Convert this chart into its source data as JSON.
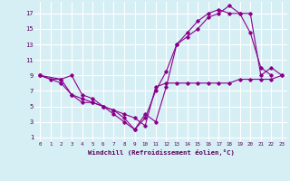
{
  "xlabel": "Windchill (Refroidissement éolien,°C)",
  "background_color": "#d6eff5",
  "grid_color": "#ffffff",
  "line_color": "#8b008b",
  "xlim": [
    -0.5,
    23.5
  ],
  "ylim": [
    0.5,
    18.5
  ],
  "xticks": [
    0,
    1,
    2,
    3,
    4,
    5,
    6,
    7,
    8,
    9,
    10,
    11,
    12,
    13,
    14,
    15,
    16,
    17,
    18,
    19,
    20,
    21,
    22,
    23
  ],
  "yticks": [
    1,
    3,
    5,
    7,
    9,
    11,
    13,
    15,
    17
  ],
  "series": [
    {
      "x": [
        0,
        1,
        2,
        3,
        4,
        5,
        6,
        7,
        8,
        9,
        10,
        11,
        12,
        13,
        14,
        15,
        16,
        17,
        18,
        19,
        20,
        21,
        22
      ],
      "y": [
        9,
        8.5,
        8.5,
        9,
        6.5,
        6,
        5,
        4.5,
        3.5,
        2,
        3.5,
        7,
        9.5,
        13,
        14.5,
        16,
        17,
        17.5,
        17,
        17,
        14.5,
        10,
        9
      ]
    },
    {
      "x": [
        0,
        2,
        3,
        4,
        5,
        6,
        7,
        8,
        9,
        10,
        11,
        12,
        13,
        14,
        15,
        16,
        17,
        18,
        19,
        20,
        21,
        22,
        23
      ],
      "y": [
        9,
        8.5,
        6.5,
        6,
        5.5,
        5,
        4.5,
        4,
        3.5,
        2.5,
        7.5,
        8,
        8,
        8,
        8,
        8,
        8,
        8,
        8.5,
        8.5,
        8.5,
        8.5,
        9
      ]
    },
    {
      "x": [
        0,
        2,
        3,
        4,
        5,
        6,
        7,
        8,
        9,
        10,
        11,
        12,
        13,
        14,
        15,
        16,
        17,
        18,
        19,
        20,
        21,
        22,
        23
      ],
      "y": [
        9,
        8,
        6.5,
        5.5,
        5.5,
        5,
        4,
        3,
        2,
        4,
        3,
        7.5,
        13,
        14,
        15,
        16.5,
        17,
        18,
        17,
        17,
        9,
        10,
        9
      ]
    }
  ]
}
